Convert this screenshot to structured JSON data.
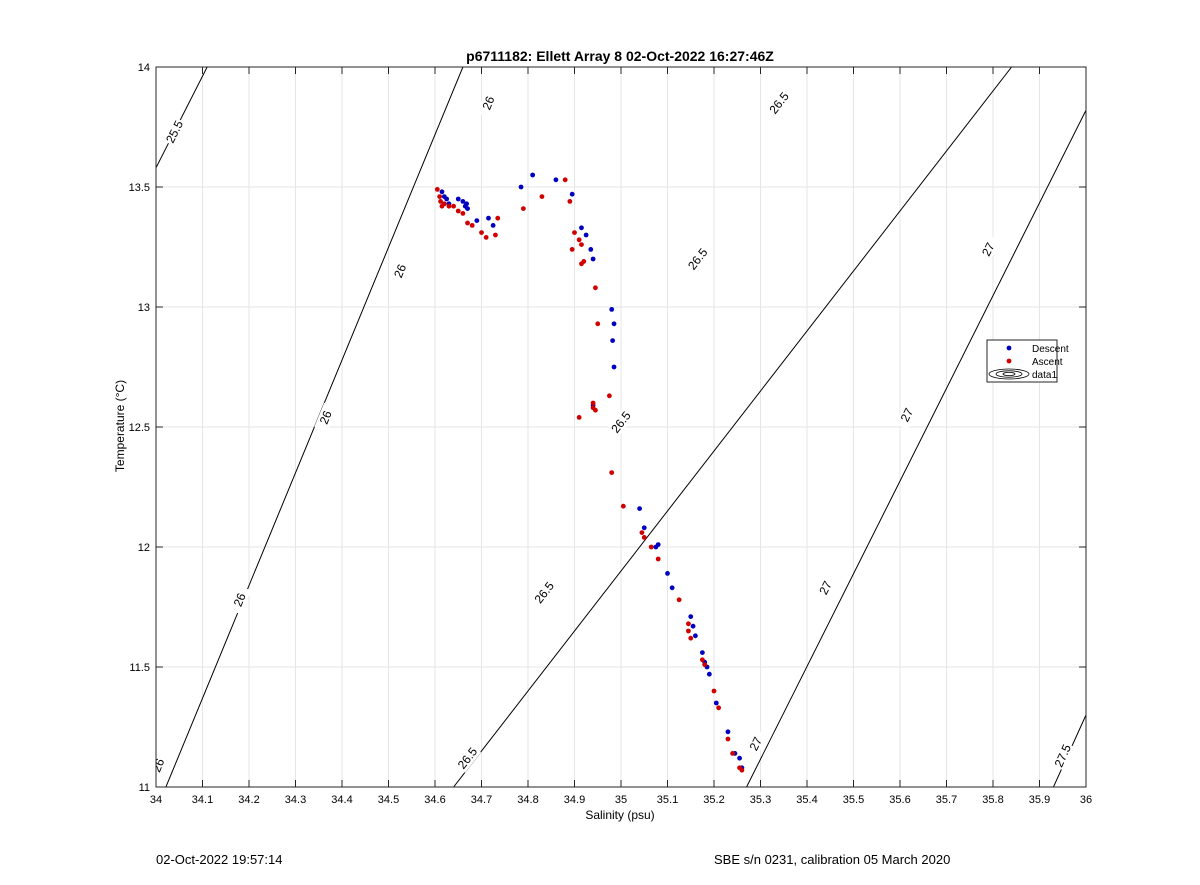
{
  "chart_data": {
    "type": "scatter",
    "title": "p6711182: Ellett Array 8 02-Oct-2022 16:27:46Z",
    "xlabel": "Salinity (psu)",
    "ylabel": "Temperature (°C)",
    "xlim": [
      34,
      36
    ],
    "ylim": [
      11,
      14
    ],
    "grid": true,
    "legend_placement": "right",
    "xticks": [
      34,
      34.1,
      34.2,
      34.3,
      34.4,
      34.5,
      34.6,
      34.7,
      34.8,
      34.9,
      35,
      35.1,
      35.2,
      35.3,
      35.4,
      35.5,
      35.6,
      35.7,
      35.8,
      35.9,
      36
    ],
    "xtick_labels": [
      "34",
      "34.1",
      "34.2",
      "34.3",
      "34.4",
      "34.5",
      "34.6",
      "34.7",
      "34.8",
      "34.9",
      "35",
      "35.1",
      "35.2",
      "35.3",
      "35.4",
      "35.5",
      "35.6",
      "35.7",
      "35.8",
      "35.9",
      "36"
    ],
    "yticks": [
      11,
      11.5,
      12,
      12.5,
      13,
      13.5,
      14
    ],
    "ytick_labels": [
      "11",
      "11.5",
      "12",
      "12.5",
      "13",
      "13.5",
      "14"
    ],
    "series": [
      {
        "name": "Descent",
        "color": "#0000c0",
        "points": [
          [
            34.615,
            13.48
          ],
          [
            34.62,
            13.46
          ],
          [
            34.625,
            13.45
          ],
          [
            34.63,
            13.43
          ],
          [
            34.65,
            13.45
          ],
          [
            34.66,
            13.44
          ],
          [
            34.665,
            13.42
          ],
          [
            34.668,
            13.43
          ],
          [
            34.67,
            13.41
          ],
          [
            34.69,
            13.36
          ],
          [
            34.715,
            13.37
          ],
          [
            34.725,
            13.34
          ],
          [
            34.785,
            13.5
          ],
          [
            34.81,
            13.55
          ],
          [
            34.86,
            13.53
          ],
          [
            34.895,
            13.47
          ],
          [
            34.915,
            13.33
          ],
          [
            34.925,
            13.3
          ],
          [
            34.935,
            13.24
          ],
          [
            34.94,
            13.2
          ],
          [
            34.98,
            12.99
          ],
          [
            34.985,
            12.93
          ],
          [
            34.982,
            12.86
          ],
          [
            34.985,
            12.75
          ],
          [
            34.94,
            12.59
          ],
          [
            35.04,
            12.16
          ],
          [
            35.05,
            12.08
          ],
          [
            35.075,
            12.0
          ],
          [
            35.08,
            12.01
          ],
          [
            35.1,
            11.89
          ],
          [
            35.11,
            11.83
          ],
          [
            35.15,
            11.71
          ],
          [
            35.155,
            11.67
          ],
          [
            35.16,
            11.63
          ],
          [
            35.175,
            11.56
          ],
          [
            35.18,
            11.52
          ],
          [
            35.185,
            11.5
          ],
          [
            35.19,
            11.47
          ],
          [
            35.205,
            11.35
          ],
          [
            35.23,
            11.23
          ],
          [
            35.245,
            11.14
          ],
          [
            35.255,
            11.12
          ],
          [
            35.26,
            11.08
          ]
        ]
      },
      {
        "name": "Ascent",
        "color": "#d00000",
        "points": [
          [
            34.605,
            13.49
          ],
          [
            34.61,
            13.46
          ],
          [
            34.612,
            13.44
          ],
          [
            34.615,
            13.42
          ],
          [
            34.62,
            13.43
          ],
          [
            34.63,
            13.42
          ],
          [
            34.64,
            13.42
          ],
          [
            34.65,
            13.4
          ],
          [
            34.66,
            13.39
          ],
          [
            34.67,
            13.35
          ],
          [
            34.68,
            13.34
          ],
          [
            34.7,
            13.31
          ],
          [
            34.71,
            13.29
          ],
          [
            34.73,
            13.3
          ],
          [
            34.735,
            13.37
          ],
          [
            34.79,
            13.41
          ],
          [
            34.83,
            13.46
          ],
          [
            34.88,
            13.53
          ],
          [
            34.89,
            13.44
          ],
          [
            34.9,
            13.31
          ],
          [
            34.895,
            13.24
          ],
          [
            34.91,
            13.28
          ],
          [
            34.915,
            13.26
          ],
          [
            34.92,
            13.19
          ],
          [
            34.915,
            13.18
          ],
          [
            34.945,
            13.08
          ],
          [
            34.95,
            12.93
          ],
          [
            34.94,
            12.6
          ],
          [
            34.945,
            12.57
          ],
          [
            34.94,
            12.58
          ],
          [
            34.975,
            12.63
          ],
          [
            34.91,
            12.54
          ],
          [
            34.98,
            12.31
          ],
          [
            35.005,
            12.17
          ],
          [
            35.045,
            12.06
          ],
          [
            35.05,
            12.04
          ],
          [
            35.065,
            12.0
          ],
          [
            35.08,
            11.95
          ],
          [
            35.125,
            11.78
          ],
          [
            35.145,
            11.68
          ],
          [
            35.145,
            11.65
          ],
          [
            35.15,
            11.62
          ],
          [
            35.175,
            11.53
          ],
          [
            35.18,
            11.51
          ],
          [
            35.2,
            11.4
          ],
          [
            35.21,
            11.33
          ],
          [
            35.23,
            11.2
          ],
          [
            35.24,
            11.14
          ],
          [
            35.255,
            11.08
          ],
          [
            35.26,
            11.07
          ]
        ]
      }
    ],
    "legend": [
      {
        "label": "Descent",
        "marker": "dot",
        "color": "#0000c0"
      },
      {
        "label": "Ascent",
        "marker": "dot",
        "color": "#d00000"
      },
      {
        "label": "data1",
        "marker": "contour",
        "color": "#000000"
      }
    ],
    "contours": [
      {
        "level": 25.5,
        "label": "25.5",
        "points": [
          [
            34.0,
            13.58
          ],
          [
            34.11,
            14.0
          ]
        ],
        "labels_at": [
          [
            34.04,
            13.73
          ]
        ]
      },
      {
        "level": 26,
        "label": "26",
        "points": [
          [
            34.0,
            10.9
          ],
          [
            34.66,
            14.0
          ]
        ],
        "labels_at": [
          [
            34.005,
            11.09
          ],
          [
            34.18,
            11.78
          ],
          [
            34.365,
            12.54
          ],
          [
            34.525,
            13.15
          ],
          [
            34.715,
            13.85
          ]
        ]
      },
      {
        "level": 26.5,
        "label": "26.5",
        "points": [
          [
            34.64,
            11.0
          ],
          [
            35.84,
            14.0
          ]
        ],
        "labels_at": [
          [
            34.67,
            11.12
          ],
          [
            34.835,
            11.81
          ],
          [
            35.0,
            12.52
          ],
          [
            35.165,
            13.2
          ],
          [
            35.34,
            13.85
          ]
        ]
      },
      {
        "level": 27,
        "label": "27",
        "points": [
          [
            35.27,
            11.0
          ],
          [
            36.0,
            13.82
          ]
        ],
        "labels_at": [
          [
            35.29,
            11.18
          ],
          [
            35.44,
            11.83
          ],
          [
            35.615,
            12.55
          ],
          [
            35.79,
            13.24
          ]
        ]
      },
      {
        "level": 27.5,
        "label": "27.5",
        "points": [
          [
            35.93,
            11.0
          ],
          [
            36.0,
            11.3
          ]
        ],
        "labels_at": [
          [
            35.95,
            11.13
          ]
        ]
      }
    ]
  },
  "footer": {
    "left": "02-Oct-2022 19:57:14",
    "right": "SBE s/n 0231, calibration 05 March 2020"
  }
}
